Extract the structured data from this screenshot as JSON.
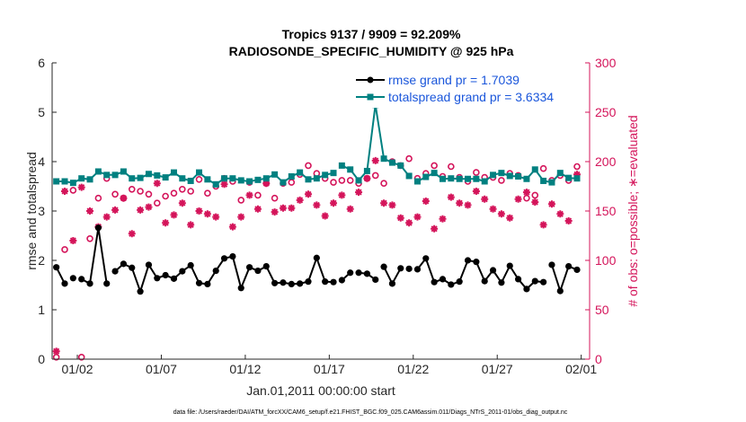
{
  "chart_data": {
    "type": "line",
    "title_line1": "Tropics 9137 / 9909 = 92.209%",
    "title_line2": "RADIOSONDE_SPECIFIC_HUMIDITY @ 925 hPa",
    "xlabel": "Jan.01,2011 00:00:00 start",
    "ylabel_left": "rmse and totalspread",
    "ylabel_right": "# of obs: o=possible; ∗=evaluated",
    "xlim": [
      0.5,
      32.5
    ],
    "ylim_left": [
      0,
      6
    ],
    "ylim_right": [
      0,
      300
    ],
    "x_ticks": [
      {
        "x": 2,
        "label": "01/02"
      },
      {
        "x": 7,
        "label": "01/07"
      },
      {
        "x": 12,
        "label": "01/12"
      },
      {
        "x": 17,
        "label": "01/17"
      },
      {
        "x": 22,
        "label": "01/22"
      },
      {
        "x": 27,
        "label": "01/27"
      },
      {
        "x": 32,
        "label": "02/01"
      }
    ],
    "y_ticks_left": [
      "0",
      "1",
      "2",
      "3",
      "4",
      "5",
      "6"
    ],
    "y_ticks_right": [
      "0",
      "50",
      "100",
      "150",
      "200",
      "250",
      "300"
    ],
    "x": [
      0.75,
      1.25,
      1.75,
      2.25,
      2.75,
      3.25,
      3.75,
      4.25,
      4.75,
      5.25,
      5.75,
      6.25,
      6.75,
      7.25,
      7.75,
      8.25,
      8.75,
      9.25,
      9.75,
      10.25,
      10.75,
      11.25,
      11.75,
      12.25,
      12.75,
      13.25,
      13.75,
      14.25,
      14.75,
      15.25,
      15.75,
      16.25,
      16.75,
      17.25,
      17.75,
      18.25,
      18.75,
      19.25,
      19.75,
      20.25,
      20.75,
      21.25,
      21.75,
      22.25,
      22.75,
      23.25,
      23.75,
      24.25,
      24.75,
      25.25,
      25.75,
      26.25,
      26.75,
      27.25,
      27.75,
      28.25,
      28.75,
      29.25,
      29.75,
      30.25,
      30.75,
      31.25,
      31.75
    ],
    "series": [
      {
        "name": "rmse",
        "legend": "rmse grand pr = 1.7039",
        "color": "#000000",
        "axis": "left",
        "values": [
          1.86,
          1.53,
          1.64,
          1.62,
          1.53,
          2.66,
          1.53,
          1.78,
          1.93,
          1.85,
          1.37,
          1.91,
          1.64,
          1.7,
          1.63,
          1.78,
          1.9,
          1.54,
          1.52,
          1.79,
          2.04,
          2.08,
          1.44,
          1.86,
          1.79,
          1.88,
          1.54,
          1.55,
          1.52,
          1.53,
          1.57,
          2.05,
          1.57,
          1.56,
          1.6,
          1.75,
          1.75,
          1.73,
          1.61,
          1.87,
          1.53,
          1.84,
          1.83,
          1.82,
          2.04,
          1.56,
          1.62,
          1.51,
          1.57,
          2.0,
          1.97,
          1.58,
          1.8,
          1.55,
          1.89,
          1.62,
          1.42,
          1.58,
          1.56,
          1.91,
          1.38,
          1.88,
          1.81
        ],
        "gaps_after_index": [
          1,
          2,
          6,
          33,
          35,
          38,
          41,
          42,
          58
        ]
      },
      {
        "name": "totalspread",
        "legend": "totalspread grand pr = 3.6334",
        "color": "#008080",
        "axis": "left",
        "values": [
          3.6,
          3.6,
          3.57,
          3.66,
          3.64,
          3.8,
          3.73,
          3.73,
          3.8,
          3.66,
          3.67,
          3.75,
          3.72,
          3.68,
          3.78,
          3.66,
          3.61,
          3.78,
          3.64,
          3.54,
          3.66,
          3.66,
          3.62,
          3.6,
          3.63,
          3.66,
          3.74,
          3.58,
          3.7,
          3.78,
          3.64,
          3.66,
          3.73,
          3.77,
          3.92,
          3.84,
          3.62,
          3.81,
          5.15,
          4.06,
          3.98,
          3.92,
          3.71,
          3.6,
          3.69,
          3.77,
          3.65,
          3.66,
          3.65,
          3.65,
          3.65,
          3.6,
          3.73,
          3.77,
          3.71,
          3.7,
          3.65,
          3.84,
          3.61,
          3.58,
          3.77,
          3.67,
          3.66
        ],
        "gaps_after_index": [
          33,
          42
        ]
      },
      {
        "name": "possible",
        "marker": "o",
        "color": "#d4145a",
        "axis": "right",
        "values": [
          2,
          111,
          171,
          2,
          122,
          163,
          183,
          167,
          163,
          172,
          170,
          167,
          158,
          165,
          168,
          172,
          170,
          182,
          168,
          175,
          183,
          180,
          161,
          179,
          166,
          178,
          163,
          178,
          179,
          187,
          196,
          188,
          183,
          179,
          181,
          181,
          178,
          183,
          186,
          178,
          200,
          196,
          203,
          183,
          188,
          196,
          185,
          195,
          184,
          180,
          189,
          184,
          184,
          181,
          188,
          186,
          163,
          166,
          193,
          181,
          186,
          181,
          195
        ]
      },
      {
        "name": "evaluated",
        "marker": "*",
        "color": "#d4145a",
        "axis": "right",
        "values": [
          8,
          170,
          120,
          174,
          150,
          134,
          144,
          151,
          163,
          127,
          151,
          154,
          178,
          138,
          146,
          158,
          136,
          150,
          147,
          144,
          177,
          134,
          144,
          166,
          152,
          178,
          149,
          153,
          153,
          161,
          167,
          156,
          145,
          158,
          166,
          152,
          169,
          183,
          201,
          158,
          156,
          143,
          138,
          144,
          160,
          132,
          142,
          164,
          158,
          156,
          170,
          162,
          152,
          147,
          143,
          162,
          169,
          159,
          136,
          157,
          147,
          140,
          187
        ]
      }
    ],
    "footer": "data file: /Users/raeder/DAI/ATM_forcXX/CAM6_setup/f.e21.FHIST_BGC.f09_025.CAM6assim.011/Diags_NTrS_2011-01/obs_diag_output.nc"
  }
}
